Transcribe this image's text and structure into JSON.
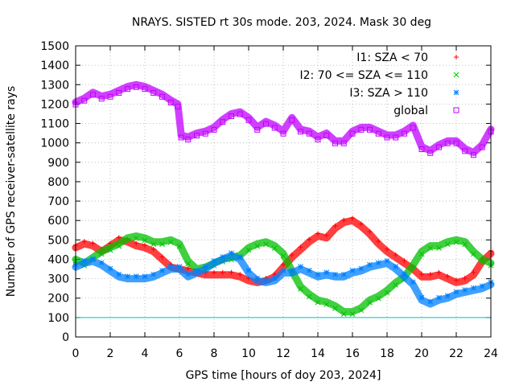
{
  "chart_data": {
    "type": "scatter",
    "title": "NRAYS. SISTED rt 30s mode. 203, 2024. Mask 30 deg",
    "xlabel": "GPS time [hours of doy 203, 2024]",
    "ylabel": "Number of GPS receiver-satellite rays",
    "xlim": [
      0,
      24
    ],
    "ylim": [
      0,
      1500
    ],
    "x_ticks": [
      "0",
      "2",
      "4",
      "6",
      "8",
      "10",
      "12",
      "14",
      "16",
      "18",
      "20",
      "22",
      "24"
    ],
    "y_ticks": [
      "0",
      "100",
      "200",
      "300",
      "400",
      "500",
      "600",
      "700",
      "800",
      "900",
      "1000",
      "1100",
      "1200",
      "1300",
      "1400",
      "1500"
    ],
    "grid": true,
    "legend_position": "top-right",
    "threshold_line": {
      "value": 100,
      "color": "#00c0c0"
    },
    "series": [
      {
        "name": "I1: SZA < 70",
        "marker": "+",
        "color": "#ff0000",
        "x": [
          0,
          0.5,
          1,
          1.5,
          2,
          2.5,
          3,
          3.5,
          4,
          4.5,
          5,
          5.5,
          6,
          6.5,
          7,
          7.5,
          8,
          8.5,
          9,
          9.5,
          10,
          10.5,
          11,
          11.5,
          12,
          12.5,
          13,
          13.5,
          14,
          14.5,
          15,
          15.5,
          16,
          16.5,
          17,
          17.5,
          18,
          18.5,
          19,
          19.5,
          20,
          20.5,
          21,
          21.5,
          22,
          22.5,
          23,
          23.5,
          24
        ],
        "values": [
          460,
          480,
          470,
          440,
          470,
          500,
          490,
          470,
          460,
          440,
          400,
          360,
          350,
          340,
          330,
          320,
          320,
          320,
          320,
          310,
          290,
          280,
          290,
          310,
          360,
          410,
          450,
          490,
          520,
          510,
          560,
          590,
          600,
          570,
          530,
          480,
          440,
          410,
          380,
          350,
          310,
          310,
          320,
          300,
          280,
          290,
          320,
          390,
          430
        ]
      },
      {
        "name": "I2: 70 <= SZA <= 110",
        "marker": "x",
        "color": "#00c000",
        "x": [
          0,
          0.5,
          1,
          1.5,
          2,
          2.5,
          3,
          3.5,
          4,
          4.5,
          5,
          5.5,
          6,
          6.5,
          7,
          7.5,
          8,
          8.5,
          9,
          9.5,
          10,
          10.5,
          11,
          11.5,
          12,
          12.5,
          13,
          13.5,
          14,
          14.5,
          15,
          15.5,
          16,
          16.5,
          17,
          17.5,
          18,
          18.5,
          19,
          19.5,
          20,
          20.5,
          21,
          21.5,
          22,
          22.5,
          23,
          23.5,
          24
        ],
        "values": [
          400,
          380,
          410,
          440,
          460,
          480,
          510,
          520,
          510,
          490,
          490,
          500,
          480,
          390,
          350,
          360,
          380,
          400,
          410,
          420,
          460,
          480,
          490,
          470,
          430,
          340,
          260,
          220,
          190,
          180,
          160,
          130,
          130,
          150,
          190,
          210,
          240,
          280,
          310,
          370,
          440,
          470,
          470,
          490,
          500,
          490,
          440,
          400,
          380
        ]
      },
      {
        "name": "I3: SZA > 110",
        "marker": "*",
        "color": "#0080ff",
        "x": [
          0,
          0.5,
          1,
          1.5,
          2,
          2.5,
          3,
          3.5,
          4,
          4.5,
          5,
          5.5,
          6,
          6.5,
          7,
          7.5,
          8,
          8.5,
          9,
          9.5,
          10,
          10.5,
          11,
          11.5,
          12,
          12.5,
          13,
          13.5,
          14,
          14.5,
          15,
          15.5,
          16,
          16.5,
          17,
          17.5,
          18,
          18.5,
          19,
          19.5,
          20,
          20.5,
          21,
          21.5,
          22,
          22.5,
          23,
          23.5,
          24
        ],
        "values": [
          360,
          380,
          390,
          370,
          340,
          310,
          300,
          300,
          300,
          310,
          330,
          350,
          350,
          310,
          330,
          350,
          380,
          400,
          420,
          400,
          330,
          290,
          280,
          290,
          330,
          330,
          350,
          330,
          310,
          320,
          310,
          310,
          330,
          340,
          360,
          370,
          380,
          350,
          310,
          270,
          190,
          170,
          190,
          200,
          220,
          230,
          240,
          250,
          270
        ]
      },
      {
        "name": "global",
        "marker": "square",
        "color": "#c000ff",
        "x": [
          0,
          0.5,
          1,
          1.5,
          2,
          2.5,
          3,
          3.5,
          4,
          4.5,
          5,
          5.5,
          5.9,
          6.1,
          6.5,
          7,
          7.5,
          8,
          8.5,
          9,
          9.5,
          10,
          10.5,
          11,
          11.5,
          12,
          12.5,
          13,
          13.5,
          14,
          14.5,
          15,
          15.5,
          16,
          16.5,
          17,
          17.5,
          18,
          18.5,
          19,
          19.5,
          20,
          20.5,
          21,
          21.5,
          22,
          22.5,
          23,
          23.5,
          24
        ],
        "values": [
          1210,
          1230,
          1260,
          1240,
          1250,
          1270,
          1290,
          1300,
          1290,
          1270,
          1250,
          1220,
          1200,
          1040,
          1030,
          1050,
          1060,
          1080,
          1120,
          1150,
          1160,
          1130,
          1080,
          1110,
          1090,
          1060,
          1130,
          1070,
          1060,
          1030,
          1050,
          1010,
          1010,
          1060,
          1080,
          1080,
          1060,
          1040,
          1040,
          1060,
          1090,
          980,
          960,
          990,
          1010,
          1010,
          970,
          950,
          990,
          1070
        ]
      }
    ]
  }
}
